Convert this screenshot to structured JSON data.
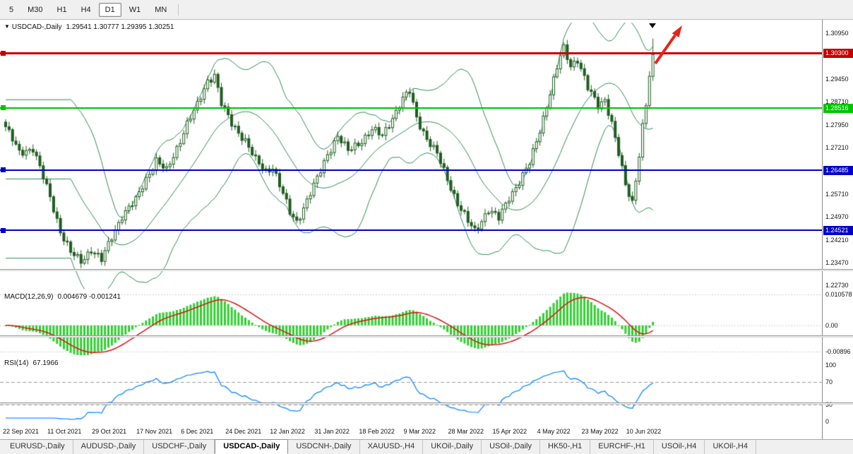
{
  "toolbar": {
    "timeframes": [
      {
        "label": "5",
        "active": false
      },
      {
        "label": "M30",
        "active": false
      },
      {
        "label": "H1",
        "active": false
      },
      {
        "label": "H4",
        "active": false
      },
      {
        "label": "D1",
        "active": true
      },
      {
        "label": "W1",
        "active": false
      },
      {
        "label": "MN",
        "active": false
      }
    ]
  },
  "chart": {
    "header": {
      "menu_icon": "▼",
      "symbol": "USDCAD-,Daily",
      "ohlc": "1.29541 1.30777 1.29395 1.30251"
    },
    "y_ticks": [
      "1.30950",
      "1.29450",
      "1.28710",
      "1.27950",
      "1.27210",
      "1.25710",
      "1.24970",
      "1.24210",
      "1.23470",
      "1.22730"
    ],
    "badges": [
      {
        "text": "1.30300",
        "price": 1.303,
        "bg": "#c40000",
        "fg": "#ffffff"
      },
      {
        "text": "1.28516",
        "price": 1.28516,
        "bg": "#00c400",
        "fg": "#ffffff"
      },
      {
        "text": "1.26485",
        "price": 1.26485,
        "bg": "#0000c8",
        "fg": "#ffffff"
      },
      {
        "text": "1.24521",
        "price": 1.24521,
        "bg": "#0000c8",
        "fg": "#ffffff"
      }
    ]
  },
  "macd_panel": {
    "label": "MACD(12,26,9)",
    "values": "0.004679 -0.001241",
    "axis": [
      {
        "text": "0.010578",
        "value": 0.010578
      },
      {
        "text": "0.00",
        "value": 0
      },
      {
        "text": "-0.00896",
        "value": -0.00896
      }
    ]
  },
  "rsi_panel": {
    "label": "RSI(14)",
    "value": "67.1966",
    "axis": [
      {
        "text": "100",
        "value": 100
      },
      {
        "text": "70",
        "value": 70
      },
      {
        "text": "30",
        "value": 30
      },
      {
        "text": "0",
        "value": 0
      }
    ]
  },
  "x_axis": {
    "labels": [
      "22 Sep 2021",
      "11 Oct 2021",
      "29 Oct 2021",
      "17 Nov 2021",
      "6 Dec 2021",
      "24 Dec 2021",
      "12 Jan 2022",
      "31 Jan 2022",
      "18 Feb 2022",
      "9 Mar 2022",
      "28 Mar 2022",
      "15 Apr 2022",
      "4 May 2022",
      "23 May 2022",
      "10 Jun 2022"
    ]
  },
  "tabs": {
    "items": [
      {
        "label": "EURUSD-,Daily",
        "active": false
      },
      {
        "label": "AUDUSD-,Daily",
        "active": false
      },
      {
        "label": "USDCHF-,Daily",
        "active": false
      },
      {
        "label": "USDCAD-,Daily",
        "active": true
      },
      {
        "label": "USDCNH-,Daily",
        "active": false
      },
      {
        "label": "XAUUSD-,H4",
        "active": false
      },
      {
        "label": "UKOil-,Daily",
        "active": false
      },
      {
        "label": "USOil-,Daily",
        "active": false
      },
      {
        "label": "HK50-,H1",
        "active": false
      },
      {
        "label": "EURCHF-,H1",
        "active": false
      },
      {
        "label": "USOil-,H4",
        "active": false
      },
      {
        "label": "UKOil-,H4",
        "active": false
      }
    ]
  },
  "chart_data": {
    "type": "candlestick",
    "symbol": "USDCAD",
    "timeframe": "Daily",
    "title": "USDCAD-,Daily",
    "candle_count": 190,
    "x_label_step": 13,
    "y_range": [
      1.22615,
      1.31295
    ],
    "last_candle": {
      "open": 1.29541,
      "high": 1.30777,
      "low": 1.29395,
      "close": 1.30251
    },
    "close_waypoints": [
      [
        0,
        1.279
      ],
      [
        4,
        1.2705
      ],
      [
        8,
        1.272
      ],
      [
        13,
        1.256
      ],
      [
        16,
        1.245
      ],
      [
        19,
        1.238
      ],
      [
        22,
        1.235
      ],
      [
        25,
        1.239
      ],
      [
        28,
        1.2355
      ],
      [
        31,
        1.243
      ],
      [
        34,
        1.25
      ],
      [
        38,
        1.255
      ],
      [
        41,
        1.262
      ],
      [
        44,
        1.268
      ],
      [
        47,
        1.2645
      ],
      [
        50,
        1.272
      ],
      [
        53,
        1.28
      ],
      [
        56,
        1.286
      ],
      [
        59,
        1.294
      ],
      [
        61,
        1.296
      ],
      [
        63,
        1.2865
      ],
      [
        66,
        1.28
      ],
      [
        70,
        1.2745
      ],
      [
        73,
        1.268
      ],
      [
        76,
        1.2645
      ],
      [
        78,
        1.266
      ],
      [
        80,
        1.26
      ],
      [
        83,
        1.251
      ],
      [
        85,
        1.248
      ],
      [
        88,
        1.255
      ],
      [
        91,
        1.262
      ],
      [
        94,
        1.27
      ],
      [
        97,
        1.276
      ],
      [
        100,
        1.271
      ],
      [
        104,
        1.2745
      ],
      [
        107,
        1.278
      ],
      [
        110,
        1.276
      ],
      [
        113,
        1.282
      ],
      [
        116,
        1.288
      ],
      [
        118,
        1.2905
      ],
      [
        120,
        1.282
      ],
      [
        123,
        1.275
      ],
      [
        126,
        1.27
      ],
      [
        129,
        1.262
      ],
      [
        132,
        1.254
      ],
      [
        135,
        1.248
      ],
      [
        137,
        1.245
      ],
      [
        141,
        1.252
      ],
      [
        144,
        1.249
      ],
      [
        147,
        1.256
      ],
      [
        150,
        1.261
      ],
      [
        153,
        1.267
      ],
      [
        156,
        1.278
      ],
      [
        159,
        1.29
      ],
      [
        162,
        1.302
      ],
      [
        163,
        1.3045
      ],
      [
        165,
        1.299
      ],
      [
        167,
        1.301
      ],
      [
        170,
        1.2915
      ],
      [
        173,
        1.286
      ],
      [
        175,
        1.288
      ],
      [
        177,
        1.28
      ],
      [
        179,
        1.27
      ],
      [
        181,
        1.26
      ],
      [
        183,
        1.2545
      ],
      [
        184,
        1.262
      ],
      [
        185,
        1.27
      ],
      [
        186,
        1.279
      ],
      [
        187,
        1.286
      ],
      [
        188,
        1.2954
      ],
      [
        189,
        1.30251
      ]
    ],
    "bollinger": {
      "period": 20,
      "deviation": 2,
      "color": "#2e8b57"
    },
    "hlines": [
      {
        "price": 1.303,
        "color": "#c40000",
        "width": 3
      },
      {
        "price": 1.28516,
        "color": "#00c400",
        "width": 2
      },
      {
        "price": 1.26485,
        "color": "#0000c8",
        "width": 2
      },
      {
        "price": 1.24521,
        "color": "#0000c8",
        "width": 2
      }
    ],
    "macd": {
      "fast": 12,
      "slow": 26,
      "signal": 9,
      "current_macd": 0.004679,
      "current_signal": -0.001241,
      "range": [
        -0.0102,
        0.0118
      ],
      "histogram_color": "#33cc33",
      "signal_color": "#dd1111"
    },
    "rsi": {
      "period": 14,
      "current": 67.1966,
      "levels": [
        70,
        30
      ],
      "range": [
        0,
        100
      ],
      "line_color": "#1e90ff"
    },
    "candle_colors": {
      "bull_fill": "#ffffff",
      "bear_fill": "#1f5c1f",
      "outline": "#1f5c1f"
    },
    "annotations": [
      {
        "type": "up-arrow",
        "color": "#e8231a",
        "position": "last-candle-top"
      },
      {
        "type": "chart-shift-marker",
        "color": "#101010"
      }
    ]
  }
}
